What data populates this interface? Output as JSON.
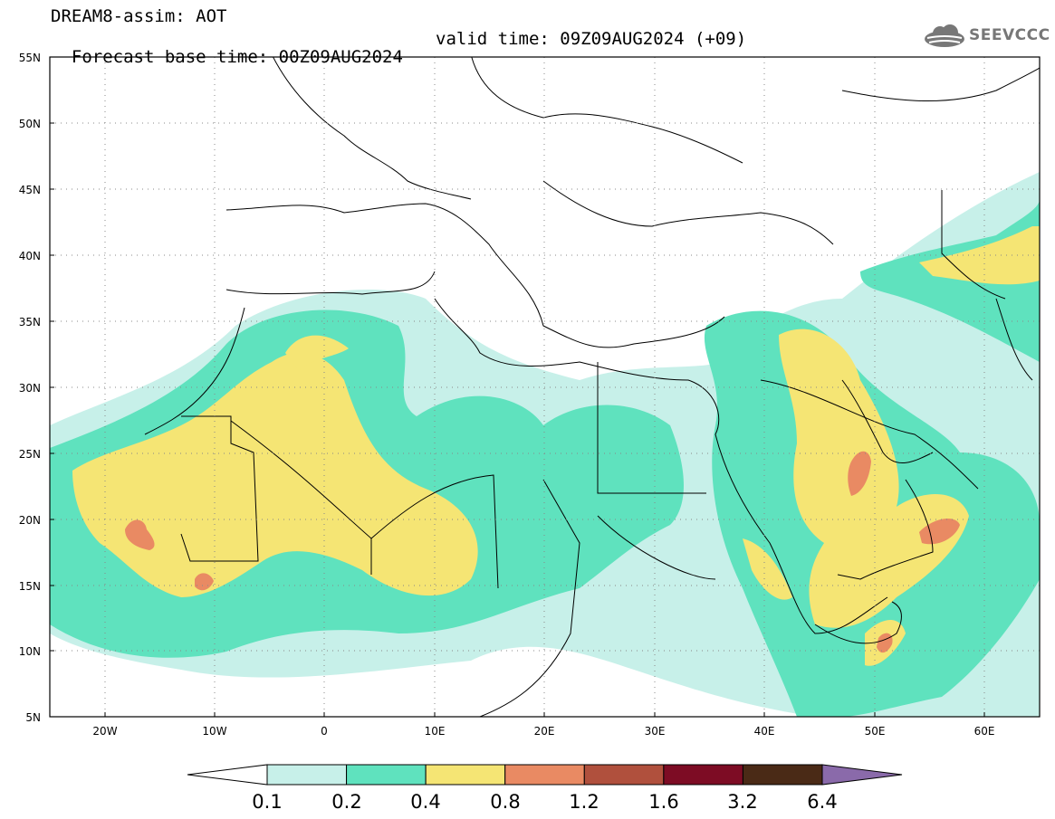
{
  "title": {
    "line1": "DREAM8-assim: AOT",
    "line2": "Forecast base time: 00Z09AUG2024",
    "valid": "valid time: 09Z09AUG2024 (+09)"
  },
  "logo": {
    "text": "SEEVCCC",
    "icon": "cloud-icon"
  },
  "axes": {
    "lat_labels": [
      "55N",
      "50N",
      "45N",
      "40N",
      "35N",
      "30N",
      "25N",
      "20N",
      "15N",
      "10N",
      "5N"
    ],
    "lon_labels": [
      "20W",
      "10W",
      "0",
      "10E",
      "20E",
      "30E",
      "40E",
      "50E",
      "60E"
    ],
    "lat_range": [
      5,
      55
    ],
    "lon_range": [
      -25,
      65
    ],
    "gridlines": "dotted"
  },
  "colorbar": {
    "colors": [
      "#c7f0e9",
      "#5fe2be",
      "#f5e574",
      "#e98a63",
      "#b0503d",
      "#7d0c24",
      "#4a2a16"
    ],
    "under_color": "#ffffff",
    "over_color": "#8a6aaa",
    "labels": [
      "0.1",
      "0.2",
      "0.4",
      "0.8",
      "1.2",
      "1.6",
      "3.2",
      "6.4"
    ]
  }
}
